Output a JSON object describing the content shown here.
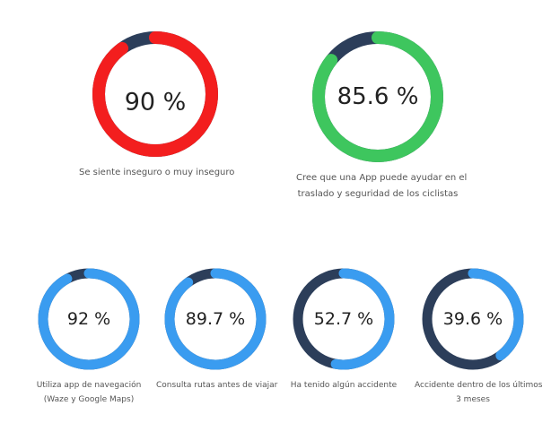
{
  "colors": {
    "track": "#2c3e5a",
    "red": "#f31e1e",
    "green": "#3ec65e",
    "blue": "#3a9cf0"
  },
  "chart_data": [
    {
      "type": "donut",
      "value": 90,
      "label_text": "90 %",
      "caption": [
        "Se siente inseguro o muy inseguro"
      ],
      "color": "#f31e1e"
    },
    {
      "type": "donut",
      "value": 85.6,
      "label_text": "85.6 %",
      "caption": [
        "Cree que una App puede ayudar en el",
        "traslado y seguridad de los ciclistas"
      ],
      "color": "#3ec65e"
    },
    {
      "type": "donut",
      "value": 92,
      "label_text": "92 %",
      "caption": [
        "Utiliza app de navegación",
        "(Waze y Google Maps)"
      ],
      "color": "#3a9cf0"
    },
    {
      "type": "donut",
      "value": 89.7,
      "label_text": "89.7 %",
      "caption": [
        "Consulta rutas antes de viajar"
      ],
      "color": "#3a9cf0"
    },
    {
      "type": "donut",
      "value": 52.7,
      "label_text": "52.7 %",
      "caption": [
        "Ha tenido algún accidente"
      ],
      "color": "#3a9cf0"
    },
    {
      "type": "donut",
      "value": 39.6,
      "label_text": "39.6 %",
      "caption": [
        "Accidente dentro de los últimos",
        "3 meses"
      ],
      "color": "#3a9cf0"
    }
  ]
}
